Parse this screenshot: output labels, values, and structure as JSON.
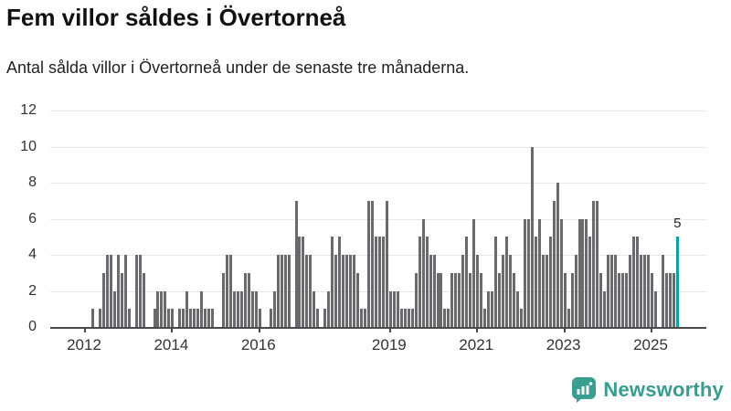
{
  "header": {
    "title": "Fem villor såldes i Övertorneå",
    "subtitle": "Antal sålda villor i Övertorneå under de senaste tre månaderna."
  },
  "logo": {
    "text": "Newsworthy"
  },
  "colors": {
    "bar": "#69696e",
    "highlight": "#00a5a5",
    "logo_teal": "#379e90",
    "grid": "#e7e7e7",
    "axis": "#4a4a4a"
  },
  "chart_data": {
    "type": "bar",
    "title": "Fem villor såldes i Övertorneå",
    "subtitle": "Antal sålda villor i Övertorneå under de senaste tre månaderna.",
    "x_start_month": "2012-01",
    "x_end_month": "2025-08",
    "x_tick_labels": [
      "2012",
      "2014",
      "2016",
      "2019",
      "2021",
      "2023",
      "2025"
    ],
    "x_tick_month_index": [
      0,
      24,
      48,
      84,
      108,
      132,
      156
    ],
    "y_ticks": [
      0,
      2,
      4,
      6,
      8,
      10,
      12
    ],
    "ylim": [
      0,
      12
    ],
    "grid": true,
    "highlight_last": true,
    "last_value_label": "5",
    "values": [
      0,
      0,
      1,
      0,
      1,
      3,
      4,
      4,
      2,
      4,
      3,
      4,
      1,
      0,
      4,
      4,
      3,
      0,
      0,
      1,
      2,
      2,
      2,
      1,
      1,
      0,
      1,
      1,
      2,
      1,
      1,
      1,
      2,
      1,
      1,
      1,
      0,
      0,
      3,
      4,
      4,
      2,
      2,
      2,
      3,
      3,
      2,
      2,
      1,
      0,
      0,
      1,
      2,
      4,
      4,
      4,
      4,
      0,
      7,
      5,
      5,
      4,
      4,
      2,
      1,
      0,
      1,
      2,
      5,
      4,
      5,
      4,
      4,
      4,
      4,
      3,
      1,
      1,
      7,
      7,
      5,
      5,
      5,
      7,
      2,
      2,
      2,
      1,
      1,
      1,
      1,
      3,
      5,
      6,
      5,
      4,
      4,
      3,
      3,
      1,
      1,
      3,
      3,
      3,
      4,
      5,
      3,
      6,
      4,
      3,
      1,
      2,
      2,
      5,
      3,
      4,
      5,
      4,
      3,
      2,
      1,
      6,
      6,
      10,
      5,
      6,
      4,
      4,
      5,
      7,
      8,
      6,
      3,
      1,
      3,
      4,
      6,
      6,
      6,
      5,
      7,
      7,
      3,
      2,
      4,
      4,
      4,
      3,
      3,
      3,
      4,
      5,
      5,
      4,
      4,
      4,
      3,
      2,
      0,
      4,
      3,
      3,
      3,
      5
    ]
  }
}
